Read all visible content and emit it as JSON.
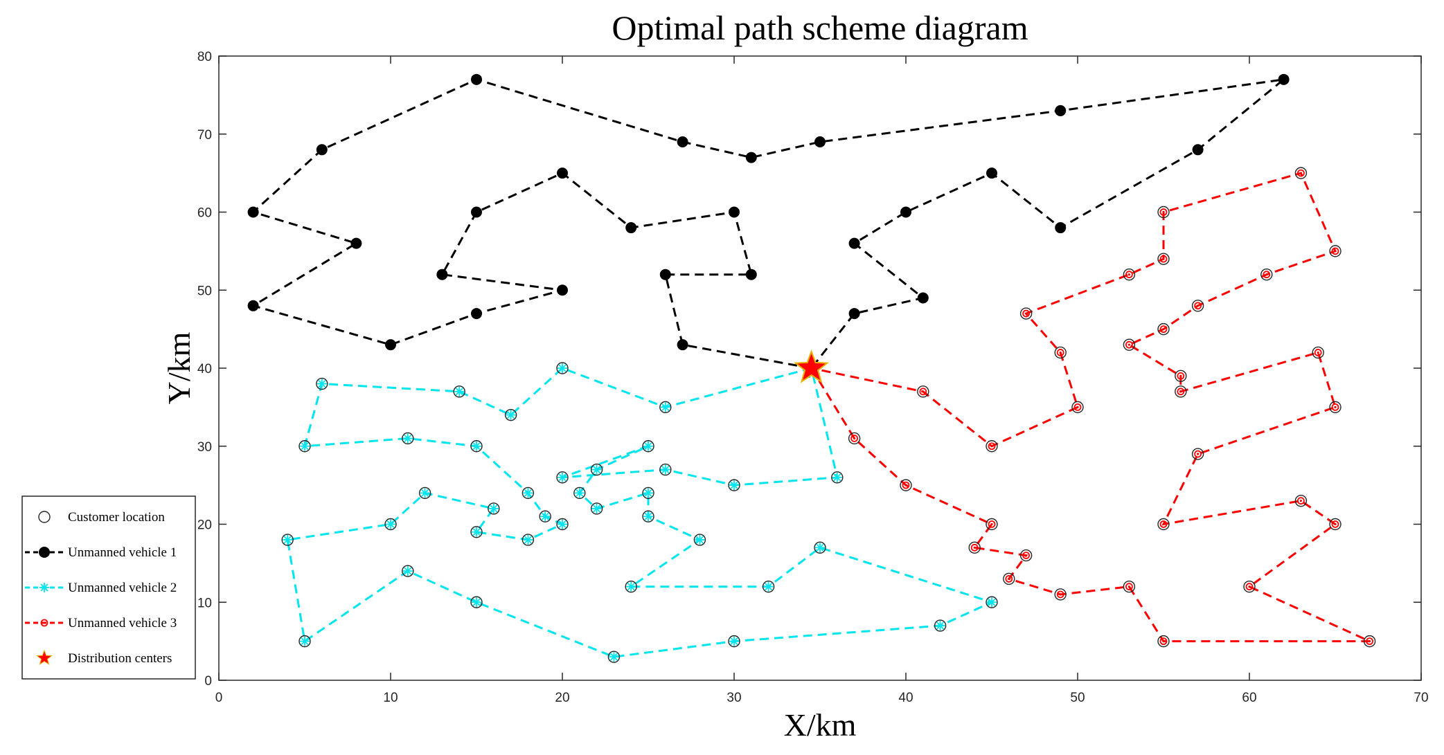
{
  "chart_data": {
    "type": "line",
    "title": "Optimal path scheme diagram",
    "xlabel": "X/km",
    "ylabel": "Y/km",
    "xlim": [
      0,
      70
    ],
    "ylim": [
      0,
      80
    ],
    "xticks": [
      "0",
      "10",
      "20",
      "30",
      "40",
      "50",
      "60",
      "70"
    ],
    "yticks": [
      "0",
      "10",
      "20",
      "30",
      "40",
      "50",
      "60",
      "70",
      "80"
    ],
    "grid": false,
    "legend_position": "lower-left outside",
    "depot": {
      "x": 34.5,
      "y": 40,
      "color": "#ff0000",
      "edge_color": "#e8b000"
    },
    "legend": [
      {
        "label": "Customer location",
        "symbol": "circle"
      },
      {
        "label": "Unmanned vehicle 1",
        "symbol": "series-0"
      },
      {
        "label": "Unmanned vehicle 2",
        "symbol": "series-1"
      },
      {
        "label": "Unmanned vehicle 3",
        "symbol": "series-2"
      },
      {
        "label": "Distribution centers",
        "symbol": "star"
      }
    ],
    "series": [
      {
        "name": "Unmanned vehicle 1",
        "color": "#000000",
        "marker": "filled-dot",
        "x": [
          34.5,
          27,
          26,
          31,
          30,
          24,
          20,
          15,
          13,
          20,
          15,
          10,
          2,
          8,
          2,
          6,
          15,
          27,
          31,
          35,
          49,
          62,
          57,
          49,
          45,
          40,
          37,
          41,
          37,
          34.5
        ],
        "y": [
          40,
          43,
          52,
          52,
          60,
          58,
          65,
          60,
          52,
          50,
          47,
          43,
          48,
          56,
          60,
          68,
          77,
          69,
          67,
          69,
          73,
          77,
          68,
          58,
          65,
          60,
          56,
          49,
          47,
          40
        ]
      },
      {
        "name": "Unmanned vehicle 2",
        "color": "#00e5ee",
        "marker": "star-burst",
        "x": [
          34.5,
          26,
          20,
          17,
          14,
          6,
          5,
          11,
          15,
          18,
          19,
          20,
          18,
          15,
          16,
          12,
          10,
          4,
          5,
          11,
          15,
          23,
          30,
          42,
          45,
          35,
          32,
          24,
          28,
          25,
          25,
          22,
          21,
          22,
          25,
          20,
          26,
          30,
          36,
          34.5
        ],
        "y": [
          40,
          35,
          40,
          34,
          37,
          38,
          30,
          31,
          30,
          24,
          21,
          20,
          18,
          19,
          22,
          24,
          20,
          18,
          5,
          14,
          10,
          3,
          5,
          7,
          10,
          17,
          12,
          12,
          18,
          21,
          24,
          22,
          24,
          27,
          30,
          26,
          27,
          25,
          26,
          40
        ]
      },
      {
        "name": "Unmanned vehicle 3",
        "color": "#ff0000",
        "marker": "ringed-point",
        "x": [
          34.5,
          37,
          40,
          45,
          44,
          47,
          46,
          49,
          53,
          55,
          67,
          60,
          65,
          63,
          55,
          57,
          65,
          64,
          56,
          56,
          53,
          55,
          57,
          61,
          65,
          63,
          55,
          55,
          53,
          47,
          49,
          50,
          45,
          41,
          34.5
        ],
        "y": [
          40,
          31,
          25,
          20,
          17,
          16,
          13,
          11,
          12,
          5,
          5,
          12,
          20,
          23,
          20,
          29,
          35,
          42,
          37,
          39,
          43,
          45,
          48,
          52,
          55,
          65,
          60,
          54,
          52,
          47,
          42,
          35,
          30,
          37,
          40
        ]
      }
    ]
  }
}
